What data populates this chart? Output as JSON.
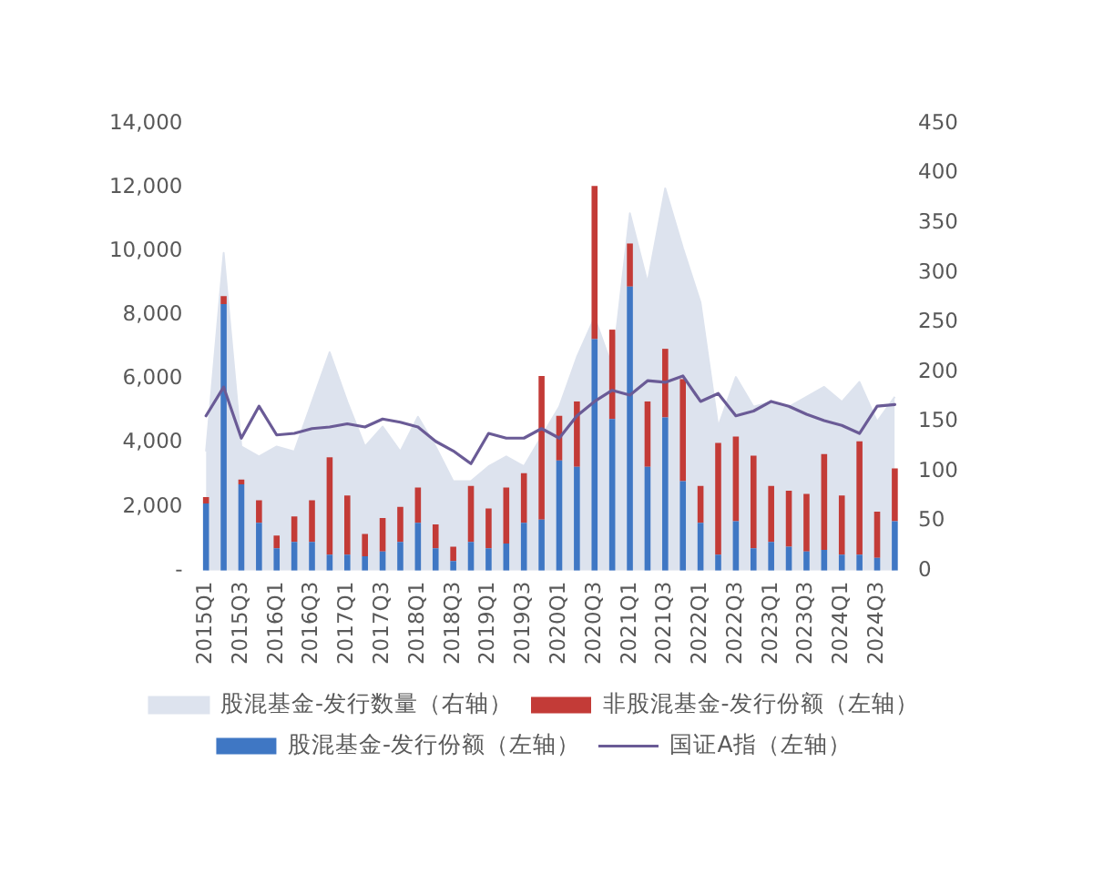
{
  "chart_data": {
    "type": "bar",
    "stacked": true,
    "legend": "bottom",
    "categories": [
      "2015Q1",
      null,
      "2015Q3",
      null,
      "2016Q1",
      null,
      "2016Q3",
      null,
      "2017Q1",
      null,
      "2017Q3",
      null,
      "2018Q1",
      null,
      "2018Q3",
      null,
      "2019Q1",
      null,
      "2019Q3",
      null,
      "2020Q1",
      null,
      "2020Q3",
      null,
      "2021Q1",
      null,
      "2021Q3",
      null,
      "2022Q1",
      null,
      "2022Q3",
      null,
      "2023Q1",
      null,
      "2023Q3",
      null,
      "2024Q1",
      null,
      "2024Q3",
      null
    ],
    "series": [
      {
        "name": "股混基金-发行数量（右轴）",
        "type": "area",
        "axis": "y2",
        "color": "#dde3ee",
        "values": [
          120,
          320,
          125,
          115,
          125,
          120,
          170,
          220,
          170,
          125,
          145,
          120,
          155,
          125,
          90,
          90,
          105,
          115,
          105,
          135,
          165,
          215,
          255,
          205,
          360,
          290,
          385,
          325,
          270,
          145,
          195,
          165,
          170,
          165,
          175,
          185,
          170,
          190,
          150,
          175
        ]
      },
      {
        "name": "股混基金-发行份额（左轴）",
        "color": "#3f77c4",
        "values": [
          2100,
          8350,
          2700,
          1500,
          700,
          900,
          900,
          500,
          500,
          450,
          600,
          900,
          1500,
          700,
          300,
          900,
          700,
          850,
          1500,
          1600,
          3450,
          3250,
          7250,
          4750,
          8900,
          3250,
          4800,
          2800,
          1500,
          500,
          1550,
          700,
          900,
          750,
          600,
          650,
          500,
          500,
          400,
          1550
        ]
      },
      {
        "name": "非股混基金-发行份额（左轴）",
        "color": "#c33b37",
        "values": [
          200,
          250,
          150,
          700,
          400,
          800,
          1300,
          3050,
          1850,
          700,
          1050,
          1100,
          1100,
          750,
          450,
          1750,
          1250,
          1750,
          1550,
          4500,
          1400,
          2050,
          4800,
          2800,
          1350,
          2050,
          2150,
          3200,
          1150,
          3500,
          2650,
          2900,
          1750,
          1750,
          1800,
          3000,
          1850,
          3550,
          1450,
          1650
        ]
      },
      {
        "name": "国证A指（左轴）",
        "type": "line",
        "color": "#6a5b96",
        "values": [
          4850,
          5750,
          4150,
          5150,
          4250,
          4300,
          4450,
          4500,
          4600,
          4500,
          4750,
          4650,
          4500,
          4050,
          3750,
          3350,
          4300,
          4150,
          4150,
          4450,
          4150,
          4850,
          5300,
          5650,
          5500,
          5950,
          5900,
          6100,
          5300,
          5550,
          4850,
          5000,
          5300,
          5150,
          4900,
          4700,
          4550,
          4300,
          5150,
          5200
        ]
      }
    ],
    "ylim": [
      0,
      14000
    ],
    "yticks": [
      {
        "value": 0,
        "label": "-"
      },
      {
        "value": 2000,
        "label": "2,000"
      },
      {
        "value": 4000,
        "label": "4,000"
      },
      {
        "value": 6000,
        "label": "6,000"
      },
      {
        "value": 8000,
        "label": "8,000"
      },
      {
        "value": 10000,
        "label": "10,000"
      },
      {
        "value": 12000,
        "label": "12,000"
      },
      {
        "value": 14000,
        "label": "14,000"
      }
    ],
    "y2lim": [
      0,
      450
    ],
    "y2ticks": [
      0,
      50,
      100,
      150,
      200,
      250,
      300,
      350,
      400,
      450
    ]
  }
}
